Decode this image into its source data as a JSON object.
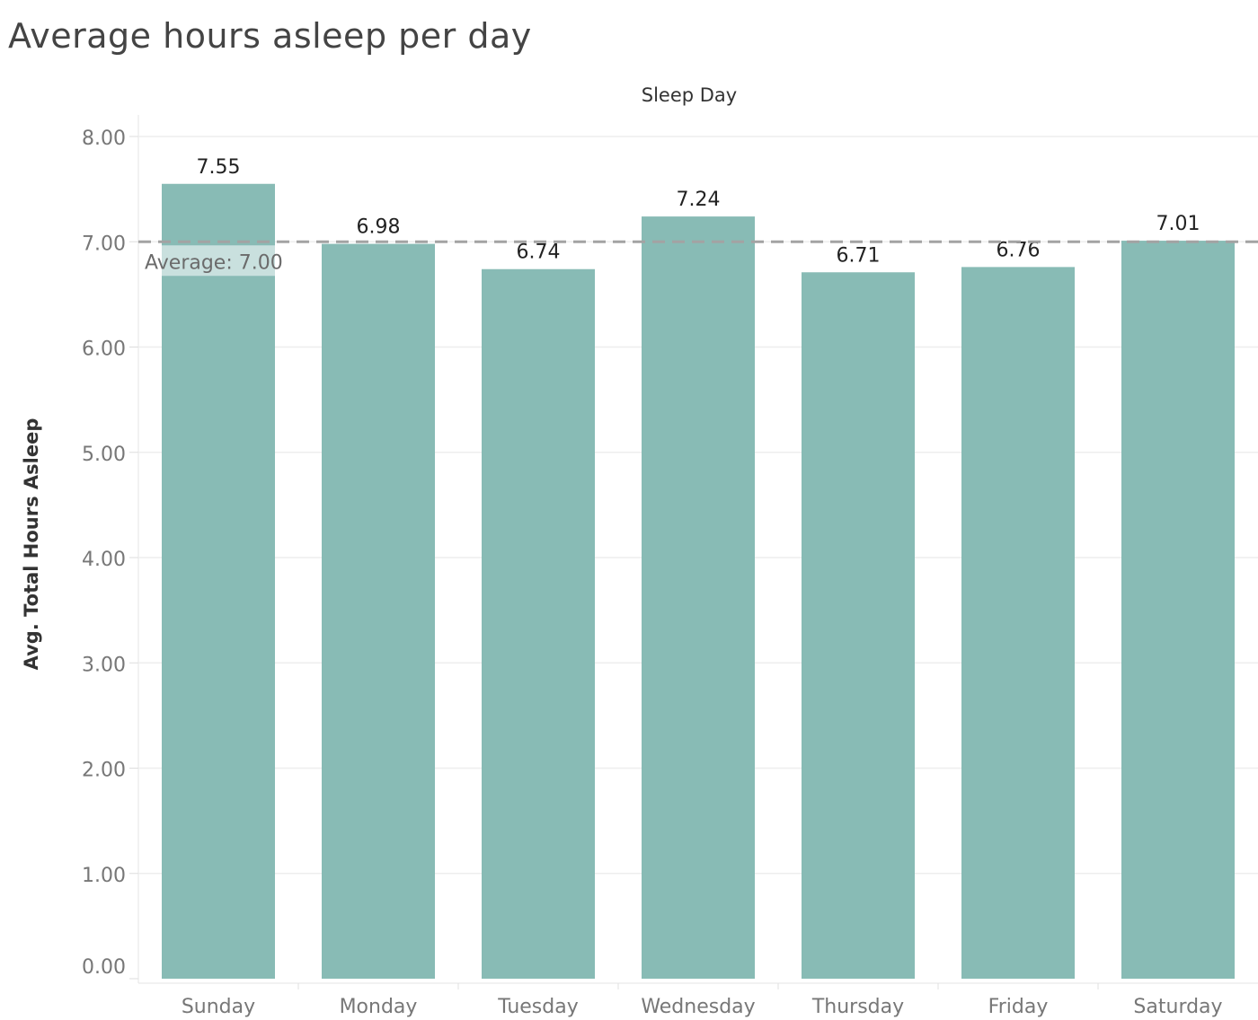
{
  "chart_data": {
    "type": "bar",
    "title": "Average hours asleep per day",
    "column_header": "Sleep Day",
    "ylabel": "Avg. Total Hours Asleep",
    "xlabel": "",
    "categories": [
      "Sunday",
      "Monday",
      "Tuesday",
      "Wednesday",
      "Thursday",
      "Friday",
      "Saturday"
    ],
    "values": [
      7.55,
      6.98,
      6.74,
      7.24,
      6.71,
      6.76,
      7.01
    ],
    "value_labels": [
      "7.55",
      "6.98",
      "6.74",
      "7.24",
      "6.71",
      "6.76",
      "7.01"
    ],
    "y_ticks": [
      0,
      1,
      2,
      3,
      4,
      5,
      6,
      7,
      8
    ],
    "y_tick_labels": [
      "0.00",
      "1.00",
      "2.00",
      "3.00",
      "4.00",
      "5.00",
      "6.00",
      "7.00",
      "8.00"
    ],
    "ylim": [
      0,
      8
    ],
    "reference_line": {
      "value": 7.0,
      "label": "Average: 7.00",
      "style": "dashed"
    },
    "grid": true,
    "colors": {
      "bar": "#88bbb5",
      "reference_line": "#a3a3a3",
      "grid": "#eeeeee",
      "tick_text": "#777777",
      "label_text": "#222222"
    }
  }
}
